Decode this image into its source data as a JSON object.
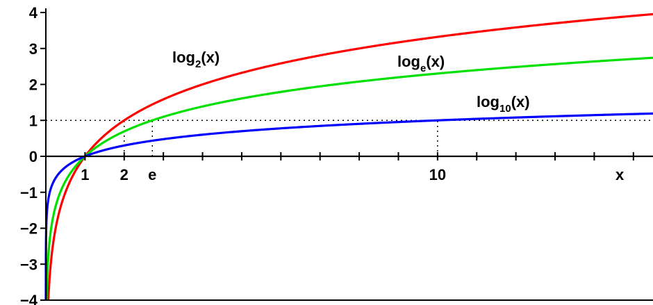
{
  "chart_data": {
    "type": "line",
    "title": "",
    "xlabel": "x",
    "ylabel": "",
    "xlim": [
      0,
      15.5
    ],
    "ylim": [
      -4,
      4
    ],
    "grid": false,
    "x_tick_positions": [
      1,
      2,
      3,
      4,
      5,
      6,
      7,
      8,
      9,
      10,
      11,
      12,
      13,
      14,
      15
    ],
    "x_tick_labels": [
      {
        "x": 1,
        "text": "1"
      },
      {
        "x": 2,
        "text": "2"
      },
      {
        "x": 2.718,
        "text": "e"
      },
      {
        "x": 10,
        "text": "10"
      }
    ],
    "y_ticks": [
      -4,
      -3,
      -2,
      -1,
      0,
      1,
      2,
      3,
      4
    ],
    "y_tick_labels": [
      "−4",
      "−3",
      "−2",
      "−1",
      "0",
      "1",
      "2",
      "3",
      "4"
    ],
    "series": [
      {
        "name": "log2(x)",
        "base": 2,
        "color": "#ff0000",
        "label_base": "log",
        "label_sub": "2",
        "label_tail": "(x)"
      },
      {
        "name": "loge(x)",
        "base": 2.718281828,
        "color": "#00e000",
        "label_base": "log",
        "label_sub": "e",
        "label_tail": "(x)"
      },
      {
        "name": "log10(x)",
        "base": 10,
        "color": "#0000ff",
        "label_base": "log",
        "label_sub": "10",
        "label_tail": "(x)"
      }
    ],
    "reference_lines": {
      "horizontal_y": 1,
      "vertical_x": [
        2,
        2.718,
        10
      ]
    }
  }
}
